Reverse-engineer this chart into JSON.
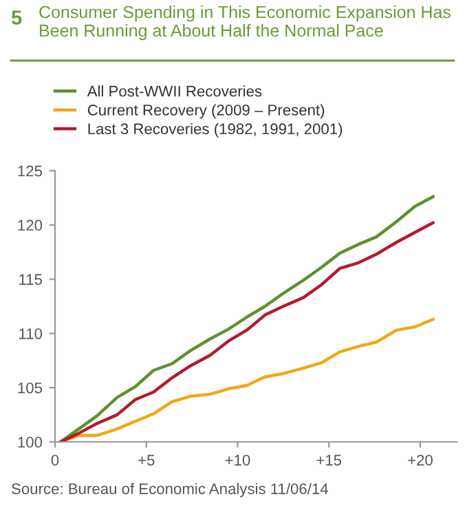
{
  "chart_data": {
    "type": "line",
    "title": "Consumer Spending in This Economic Expansion Has Been Running at About Half the Normal Pace",
    "subtitle": "5",
    "x": [
      0.3,
      1.3,
      2.3,
      3.4,
      4.4,
      5.4,
      6.4,
      7.4,
      8.5,
      9.5,
      10.5,
      11.5,
      12.5,
      13.6,
      14.6,
      15.6,
      16.6,
      17.6,
      18.7,
      19.7,
      20.7
    ],
    "series": [
      {
        "name": "All Post-WWII Recoveries",
        "color": "#5e8f32",
        "values": [
          100,
          101.2,
          102.4,
          104.1,
          105.1,
          106.6,
          107.2,
          108.4,
          109.5,
          110.4,
          111.5,
          112.5,
          113.7,
          114.9,
          116.1,
          117.4,
          118.2,
          118.9,
          120.3,
          121.7,
          122.6
        ]
      },
      {
        "name": "Current Recovery (2009 – Present)",
        "color": "#f0a818",
        "values": [
          100,
          100.6,
          100.6,
          101.2,
          101.9,
          102.6,
          103.7,
          104.2,
          104.4,
          104.9,
          105.2,
          106.0,
          106.3,
          106.8,
          107.3,
          108.3,
          108.8,
          109.2,
          110.3,
          110.6,
          111.3
        ]
      },
      {
        "name": "Last 3 Recoveries (1982, 1991, 2001)",
        "color": "#b01c2e",
        "values": [
          100,
          100.8,
          101.7,
          102.5,
          103.9,
          104.6,
          105.9,
          107.0,
          108.0,
          109.3,
          110.3,
          111.7,
          112.5,
          113.3,
          114.5,
          116.0,
          116.5,
          117.3,
          118.4,
          119.3,
          120.2
        ]
      }
    ],
    "xlim": [
      0,
      22
    ],
    "xticks": [
      0,
      {
        "value": 5,
        "label": "+5"
      },
      {
        "value": 10,
        "label": "+10"
      },
      {
        "value": 15,
        "label": "+15"
      },
      {
        "value": 20,
        "label": "+20"
      }
    ],
    "ylim": [
      100,
      125
    ],
    "yticks": [
      100,
      105,
      110,
      115,
      120,
      125
    ],
    "grid": false,
    "legend": "top left",
    "line_style": "solid",
    "marker": "none",
    "annotations": [
      "Source: Bureau of Economic Analysis 11/06/14"
    ]
  }
}
